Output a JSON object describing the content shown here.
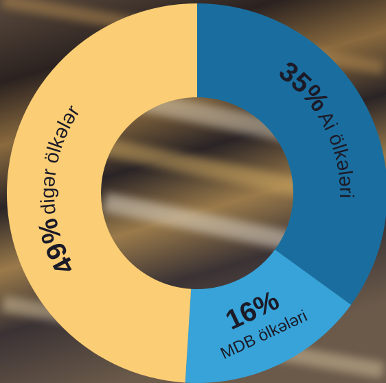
{
  "chart_data": {
    "type": "pie",
    "categories": [
      "Ai ölkələri",
      "MDB ölkələri",
      "digər ölkələr"
    ],
    "values": [
      35,
      16,
      49
    ],
    "value_labels": [
      "35%",
      "16%",
      "49%"
    ],
    "colors": [
      "#1a6e9f",
      "#37a3d8",
      "#fbcd74"
    ]
  }
}
